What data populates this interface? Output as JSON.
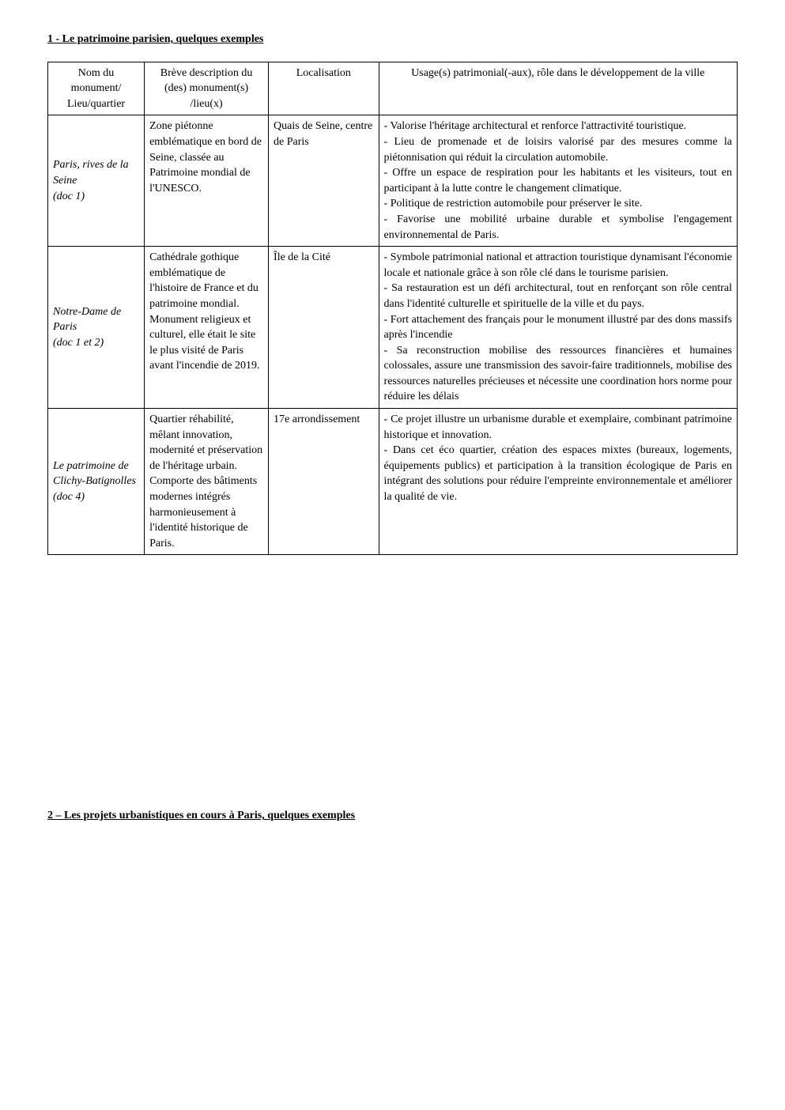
{
  "headings": {
    "section1": "1 - Le patrimoine parisien, quelques exemples",
    "section2": "2 – Les projets urbanistiques en cours à Paris, quelques exemples"
  },
  "table": {
    "header": {
      "c1": "Nom du monument/ Lieu/quartier",
      "c2": "Brève description du (des) monument(s) /lieu(x)",
      "c3": "Localisation",
      "c4": "Usage(s) patrimonial(-aux), rôle dans le développement de la ville"
    },
    "rows": [
      {
        "name": "Paris, rives de la Seine\n(doc 1)",
        "desc": "Zone piétonne emblématique en bord de Seine, classée au Patrimoine mondial de l'UNESCO.",
        "loc": "Quais de Seine, centre de Paris",
        "usage": "- Valorise l'héritage architectural et renforce l'attractivité touristique.\n- Lieu de promenade et de loisirs valorisé par des mesures comme la piétonnisation qui réduit la circulation automobile.\n- Offre un espace de respiration pour les habitants et les visiteurs, tout en participant à la lutte contre le changement climatique.\n- Politique de restriction automobile pour préserver le site.\n- Favorise une mobilité urbaine durable et symbolise l'engagement environnemental de Paris."
      },
      {
        "name": "Notre-Dame de Paris\n(doc 1 et 2)",
        "desc": "Cathédrale gothique emblématique de l'histoire de France et du patrimoine mondial.\nMonument religieux et culturel, elle était le site le plus visité de Paris avant l'incendie de 2019.",
        "loc": "Île de la Cité",
        "usage": "- Symbole patrimonial national et attraction touristique dynamisant l'économie locale et nationale grâce à son rôle clé dans le tourisme parisien.\n- Sa restauration est un défi architectural, tout en renforçant son rôle central dans l'identité culturelle et spirituelle de la ville et du pays.\n- Fort attachement des français pour le monument illustré par des dons massifs après l'incendie\n- Sa reconstruction mobilise des ressources financières et humaines colossales, assure une transmission des savoir-faire traditionnels, mobilise des ressources naturelles précieuses et nécessite une coordination hors norme pour réduire les délais"
      },
      {
        "name": "Le patrimoine de Clichy-Batignolles\n(doc 4)",
        "desc": "Quartier réhabilité, mêlant innovation, modernité et préservation de l'héritage urbain. Comporte des bâtiments modernes intégrés harmonieusement à l'identité historique de Paris.",
        "loc": "17e arrondissement",
        "usage": "- Ce projet illustre un urbanisme durable et exemplaire, combinant patrimoine historique et innovation.\n- Dans cet éco quartier, création des espaces mixtes (bureaux, logements, équipements publics) et participation à la transition écologique de Paris en intégrant des solutions pour réduire l'empreinte environnementale et améliorer la qualité de vie."
      }
    ]
  }
}
